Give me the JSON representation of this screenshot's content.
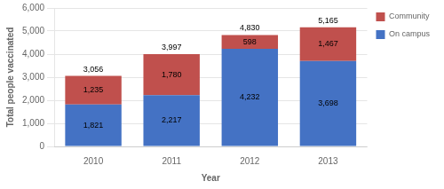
{
  "chart_data": {
    "type": "bar",
    "stacked": true,
    "data_labels": true,
    "categories": [
      "2010",
      "2011",
      "2012",
      "2013"
    ],
    "series": [
      {
        "name": "On campus",
        "color": "#4472C4",
        "values": [
          1821,
          2217,
          4232,
          3698
        ],
        "value_labels": [
          "1,821",
          "2,217",
          "4,232",
          "3,698"
        ]
      },
      {
        "name": "Community",
        "color": "#C0504D",
        "values": [
          1235,
          1780,
          598,
          1467
        ],
        "value_labels": [
          "1,235",
          "1,780",
          "598",
          "1,467"
        ]
      }
    ],
    "totals": [
      3056,
      3997,
      4830,
      5165
    ],
    "total_labels": [
      "3,056",
      "3,997",
      "4,830",
      "5,165"
    ],
    "xlabel": "Year",
    "ylabel": "Total people vaccinated",
    "ylim": [
      0,
      6000
    ],
    "yticks": [
      0,
      {
        "value": 1000,
        "label": "1,000"
      },
      {
        "value": 2000,
        "label": "2,000"
      },
      {
        "value": 3000,
        "label": "3,000"
      },
      {
        "value": 4000,
        "label": "4,000"
      },
      {
        "value": 5000,
        "label": "5,000"
      },
      {
        "value": 6000,
        "label": "6,000"
      }
    ],
    "grid": true,
    "legend": "upper right"
  }
}
